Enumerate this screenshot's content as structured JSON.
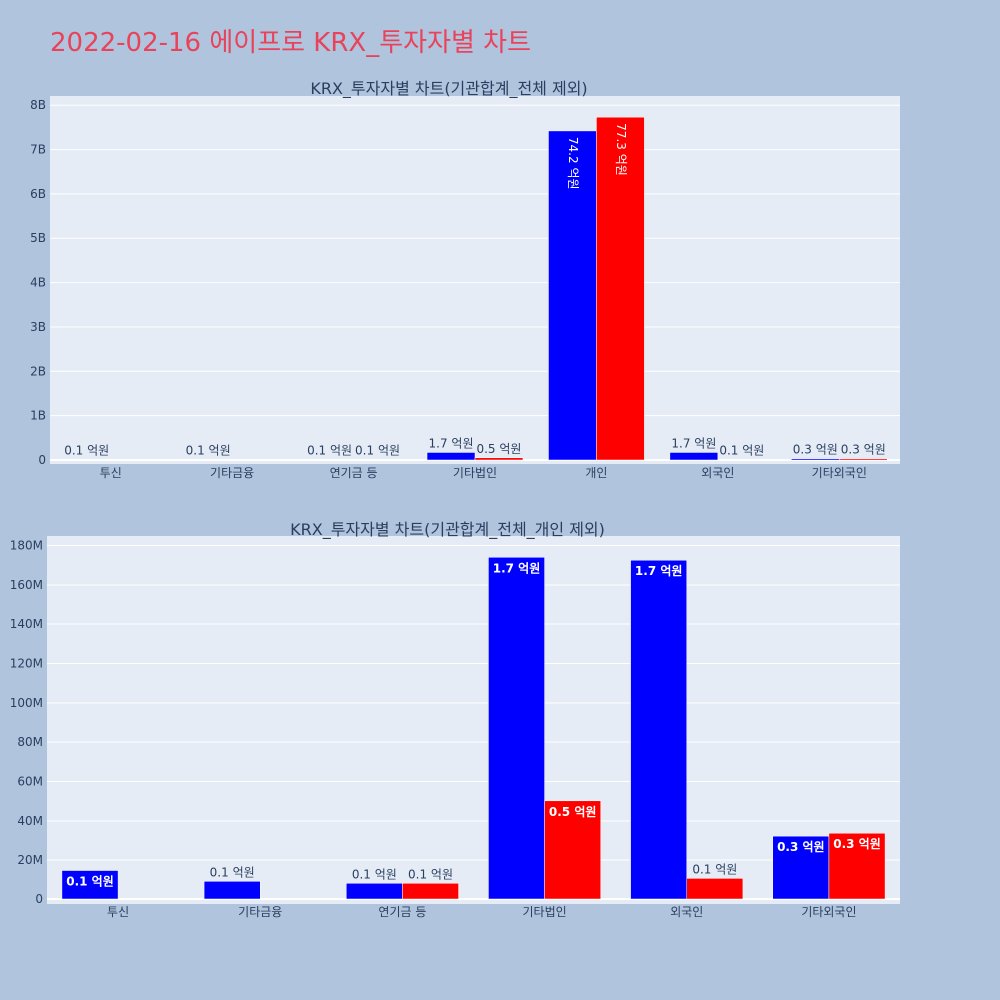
{
  "page_title": "2022-02-16 에이프로 KRX_투자자별 차트",
  "colors": {
    "buy": "#0000FF",
    "sell": "#FF0000",
    "plot_bg": "#E5ECF6",
    "page_bg": "#B0C4DE",
    "title": "#E8435A"
  },
  "chart_data": [
    {
      "type": "bar",
      "title": "KRX_투자자별 차트(기관합계_전체 제외)",
      "categories": [
        "투신",
        "기타금융",
        "연기금 등",
        "기타법인",
        "개인",
        "외국인",
        "기타외국인"
      ],
      "series": [
        {
          "values": [
            10000000,
            10000000,
            10000000,
            170000000,
            7420000000,
            170000000,
            30000000
          ],
          "labels": [
            "0.1 억원",
            "0.1 억원",
            "0.1 억원",
            "1.7 억원",
            "74.2 억원",
            "1.7 억원",
            "0.3 억원"
          ]
        },
        {
          "values": [
            0,
            0,
            10000000,
            50000000,
            7730000000,
            10000000,
            30000000
          ],
          "labels": [
            "",
            "",
            "0.1 억원",
            "0.5 억원",
            "77.3 억원",
            "0.1 억원",
            "0.3 억원"
          ]
        }
      ],
      "yticks": [
        "0",
        "1B",
        "2B",
        "3B",
        "4B",
        "5B",
        "6B",
        "7B",
        "8B"
      ],
      "ylim": [
        0,
        8000000000
      ],
      "grid": true,
      "legend": "none"
    },
    {
      "type": "bar",
      "title": "KRX_투자자별 차트(기관합계_전체_개인 제외)",
      "categories": [
        "투신",
        "기타금융",
        "연기금 등",
        "기타법인",
        "외국인",
        "기타외국인"
      ],
      "series": [
        {
          "values": [
            14500000,
            9000000,
            8000000,
            174000000,
            172500000,
            32000000
          ],
          "labels": [
            "0.1 억원",
            "0.1 억원",
            "0.1 억원",
            "1.7 억원",
            "1.7 억원",
            "0.3 억원"
          ]
        },
        {
          "values": [
            0,
            0,
            8000000,
            50000000,
            10500000,
            33500000
          ],
          "labels": [
            "",
            "",
            "0.1 억원",
            "0.5 억원",
            "0.1 억원",
            "0.3 억원"
          ]
        }
      ],
      "yticks": [
        "0",
        "20M",
        "40M",
        "60M",
        "80M",
        "100M",
        "120M",
        "140M",
        "160M",
        "180M"
      ],
      "ylim": [
        0,
        180000000
      ],
      "grid": true,
      "legend": "none"
    }
  ]
}
